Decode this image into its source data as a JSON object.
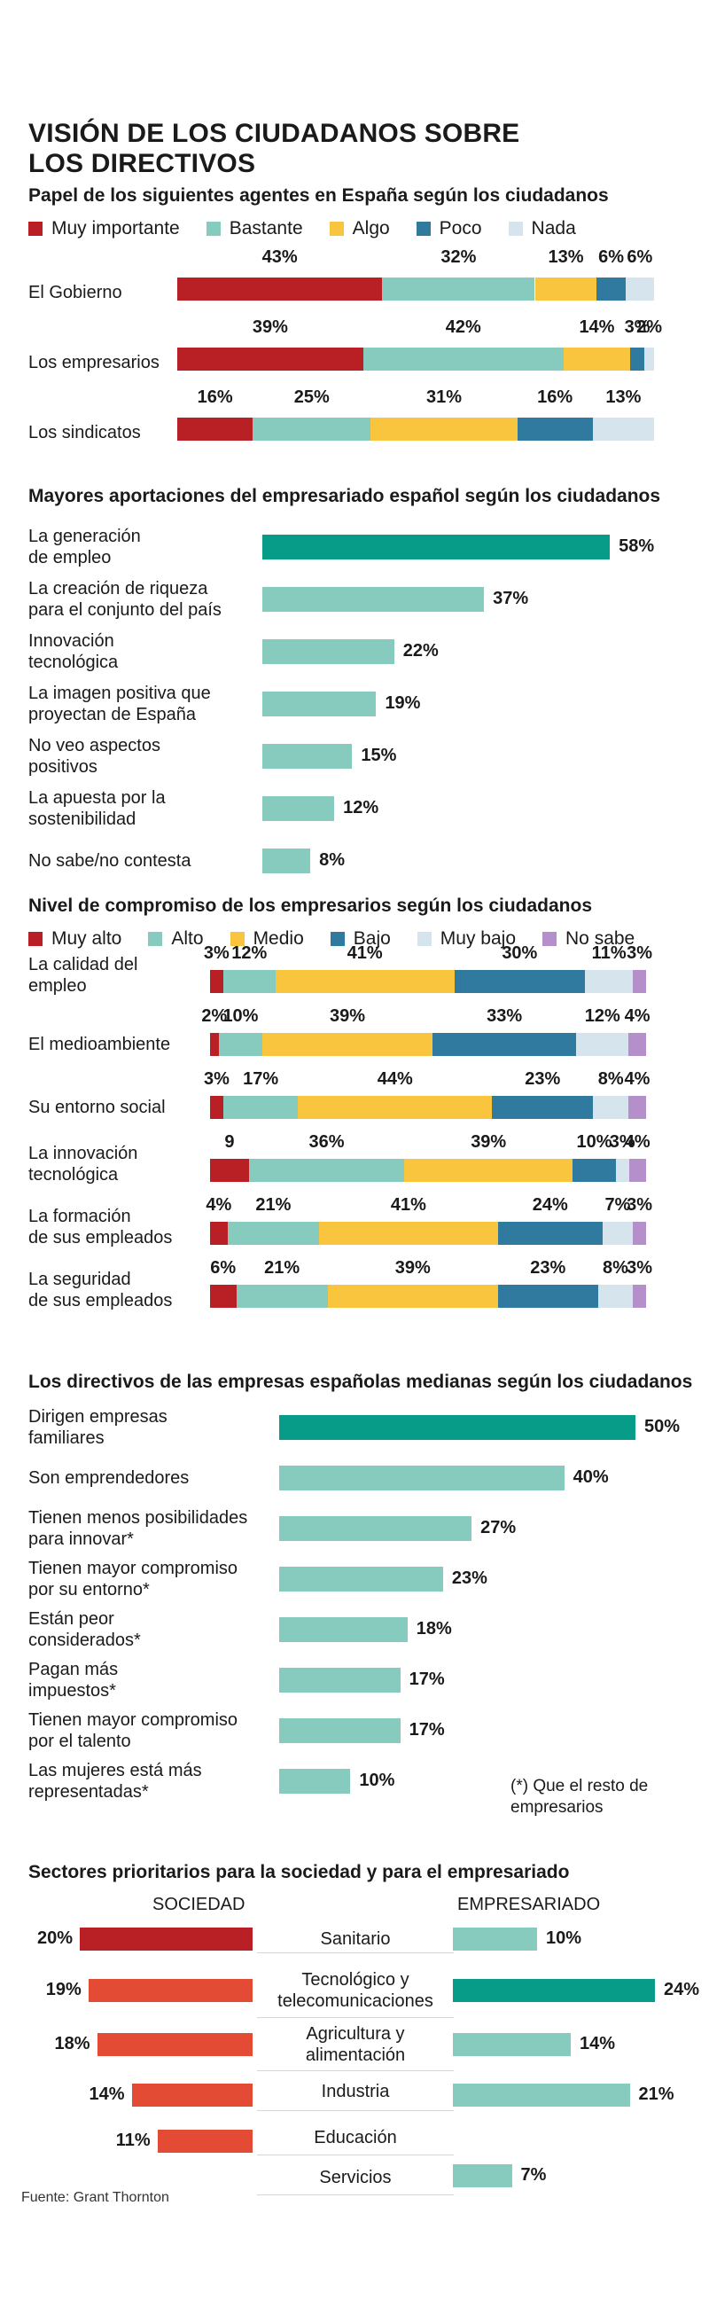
{
  "title": "VISIÓN DE LOS CIUDADANOS SOBRE LOS DIRECTIVOS",
  "source": "Fuente: Grant Thornton",
  "colors": {
    "dark_red": "#b82025",
    "red": "#e34b35",
    "light_teal": "#86cbbd",
    "teal": "#069c87",
    "yellow": "#f9c43e",
    "blue": "#2f7a9e",
    "pale_blue": "#d6e4ee",
    "purple": "#b48fca"
  },
  "chart_data": [
    {
      "type": "stacked-bar",
      "title": "Papel de los siguientes agentes en España según los ciudadanos",
      "legend": [
        "Muy importante",
        "Bastante",
        "Algo",
        "Poco",
        "Nada"
      ],
      "series_colors": [
        "#b82025",
        "#86cbbd",
        "#f9c43e",
        "#2f7a9e",
        "#d6e4ee"
      ],
      "rows": [
        {
          "label": "El Gobierno",
          "values": [
            43,
            32,
            13,
            6,
            6
          ],
          "labels": [
            "43%",
            "32%",
            "13%",
            "6%",
            "6%"
          ]
        },
        {
          "label": "Los empresarios",
          "values": [
            39,
            42,
            14,
            3,
            2
          ],
          "labels": [
            "39%",
            "42%",
            "14%",
            "3%",
            "2%"
          ]
        },
        {
          "label": "Los sindicatos",
          "values": [
            16,
            25,
            31,
            16,
            13
          ],
          "labels": [
            "16%",
            "25%",
            "31%",
            "16%",
            "13%"
          ]
        }
      ]
    },
    {
      "type": "bar",
      "title": "Mayores aportaciones del empresariado español según los ciudadanos",
      "categories": [
        "La generación de empleo",
        "La creación de riqueza para el conjunto del país",
        "Innovación tecnológica",
        "La imagen positiva que proyectan de España",
        "No veo aspectos positivos",
        "La apuesta por la sostenibilidad",
        "No sabe/no contesta"
      ],
      "category_lines": [
        [
          "La generación",
          "de empleo"
        ],
        [
          "La creación de riqueza",
          "para el conjunto del país"
        ],
        [
          "Innovación",
          "tecnológica"
        ],
        [
          "La imagen positiva que",
          "proyectan de España"
        ],
        [
          "No veo aspectos",
          "positivos"
        ],
        [
          "La apuesta por la",
          "sostenibilidad"
        ],
        [
          "No sabe/no contesta"
        ]
      ],
      "values": [
        58,
        37,
        22,
        19,
        15,
        12,
        8
      ],
      "value_labels": [
        "58%",
        "37%",
        "22%",
        "19%",
        "15%",
        "12%",
        "8%"
      ],
      "highlight_index": 0
    },
    {
      "type": "stacked-bar",
      "title": "Nivel de compromiso de los empresarios según los ciudadanos",
      "legend": [
        "Muy alto",
        "Alto",
        "Medio",
        "Bajo",
        "Muy bajo",
        "No sabe"
      ],
      "series_colors": [
        "#b82025",
        "#86cbbd",
        "#f9c43e",
        "#2f7a9e",
        "#d6e4ee",
        "#b48fca"
      ],
      "rows": [
        {
          "label": "La calidad del empleo",
          "lines": [
            "La calidad del",
            "empleo"
          ],
          "values": [
            3,
            12,
            41,
            30,
            11,
            3
          ],
          "labels": [
            "3%",
            "12%",
            "41%",
            "30%",
            "11%",
            "3%"
          ]
        },
        {
          "label": "El medioambiente",
          "lines": [
            "El medioambiente"
          ],
          "values": [
            2,
            10,
            39,
            33,
            12,
            4
          ],
          "labels": [
            "2%",
            "10%",
            "39%",
            "33%",
            "12%",
            "4%"
          ]
        },
        {
          "label": "Su entorno social",
          "lines": [
            "Su entorno social"
          ],
          "values": [
            3,
            17,
            44,
            23,
            8,
            4
          ],
          "labels": [
            "3%",
            "17%",
            "44%",
            "23%",
            "8%",
            "4%"
          ]
        },
        {
          "label": "La innovación tecnológica",
          "lines": [
            "La innovación",
            "tecnológica"
          ],
          "values": [
            9,
            36,
            39,
            10,
            3,
            4
          ],
          "labels": [
            "9",
            "36%",
            "39%",
            "10%",
            "3%",
            "4%"
          ]
        },
        {
          "label": "La formación de sus empleados",
          "lines": [
            "La formación",
            "de sus empleados"
          ],
          "values": [
            4,
            21,
            41,
            24,
            7,
            3
          ],
          "labels": [
            "4%",
            "21%",
            "41%",
            "24%",
            "7%",
            "3%"
          ]
        },
        {
          "label": "La seguridad de sus empleados",
          "lines": [
            "La seguridad",
            "de sus empleados"
          ],
          "values": [
            6,
            21,
            39,
            23,
            8,
            3
          ],
          "labels": [
            "6%",
            "21%",
            "39%",
            "23%",
            "8%",
            "3%"
          ]
        }
      ]
    },
    {
      "type": "bar",
      "title": "Los directivos de las empresas españolas medianas según los ciudadanos",
      "categories": [
        "Dirigen empresas familiares",
        "Son emprendedores",
        "Tienen menos posibilidades para innovar*",
        "Tienen mayor compromiso por su entorno*",
        "Están peor considerados*",
        "Pagan más impuestos*",
        "Tienen mayor compromiso por el talento",
        "Las mujeres está más representadas*"
      ],
      "category_lines": [
        [
          "Dirigen empresas",
          "familiares"
        ],
        [
          "Son emprendedores"
        ],
        [
          "Tienen menos posibilidades",
          "para innovar*"
        ],
        [
          "Tienen mayor compromiso",
          "por su entorno*"
        ],
        [
          "Están peor",
          "considerados*"
        ],
        [
          "Pagan más",
          "impuestos*"
        ],
        [
          "Tienen mayor compromiso",
          "por el talento"
        ],
        [
          "Las mujeres está más",
          "representadas*"
        ]
      ],
      "values": [
        50,
        40,
        27,
        23,
        18,
        17,
        17,
        10
      ],
      "value_labels": [
        "50%",
        "40%",
        "27%",
        "23%",
        "18%",
        "17%",
        "17%",
        "10%"
      ],
      "highlight_index": 0,
      "note": [
        "(*) Que el resto de",
        "empresarios"
      ]
    },
    {
      "type": "diverging-bar",
      "title": "Sectores prioritarios para la sociedad y para el empresariado",
      "left_header": "SOCIEDAD",
      "right_header": "EMPRESARIADO",
      "categories": [
        "Sanitario",
        "Tecnológico y telecomunicaciones",
        "Agricultura y alimentación",
        "Industria",
        "Educación",
        "Servicios"
      ],
      "category_lines": [
        [
          "Sanitario"
        ],
        [
          "Tecnológico y",
          "telecomunicaciones"
        ],
        [
          "Agricultura y",
          "alimentación"
        ],
        [
          "Industria"
        ],
        [
          "Educación"
        ],
        [
          "Servicios"
        ]
      ],
      "sociedad": {
        "values": [
          20,
          19,
          18,
          14,
          11
        ],
        "labels": [
          "20%",
          "19%",
          "18%",
          "14%",
          "11%"
        ]
      },
      "empresariado": {
        "values": [
          10,
          24,
          14,
          21,
          7
        ],
        "labels": [
          "10%",
          "24%",
          "14%",
          "21%",
          "7%"
        ],
        "rows": [
          0,
          1,
          2,
          3,
          5
        ]
      }
    }
  ]
}
